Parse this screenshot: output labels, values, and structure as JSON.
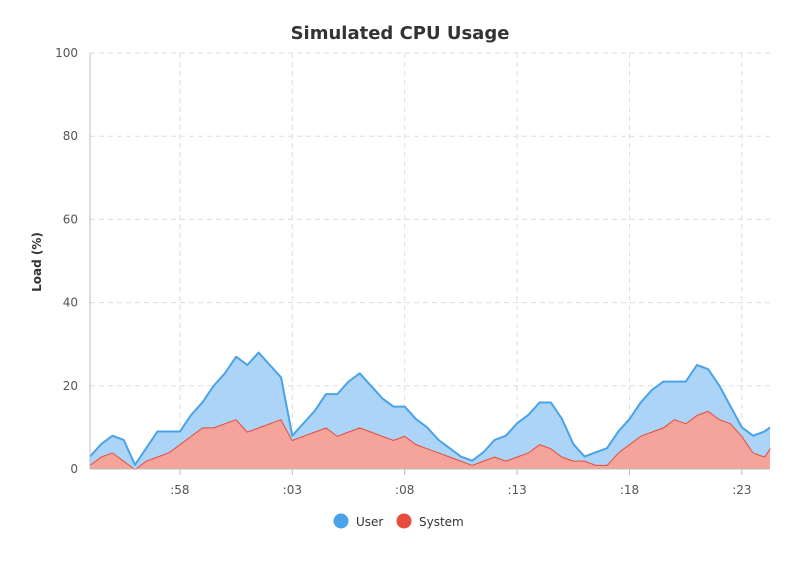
{
  "chart_data": {
    "type": "area",
    "title": "Simulated CPU Usage",
    "ylabel": "Load (%)",
    "xlabel": "",
    "ylim": [
      0,
      100
    ],
    "xlim": [
      0,
      60.5
    ],
    "yticks": [
      0,
      20,
      40,
      60,
      80,
      100
    ],
    "xticks": [
      {
        "x": 8,
        "label": ":58"
      },
      {
        "x": 18,
        "label": ":03"
      },
      {
        "x": 28,
        "label": ":08"
      },
      {
        "x": 38,
        "label": ":13"
      },
      {
        "x": 48,
        "label": ":18"
      },
      {
        "x": 58,
        "label": ":23"
      }
    ],
    "grid": true,
    "legend_position": "bottom",
    "stacked": true,
    "x": [
      0,
      1,
      2,
      3,
      4,
      5,
      6,
      7,
      8,
      9,
      10,
      11,
      12,
      13,
      14,
      15,
      16,
      17,
      18,
      19,
      20,
      21,
      22,
      23,
      24,
      25,
      26,
      27,
      28,
      29,
      30,
      31,
      32,
      33,
      34,
      35,
      36,
      37,
      38,
      39,
      40,
      41,
      42,
      43,
      44,
      45,
      46,
      47,
      48,
      49,
      50,
      51,
      52,
      53,
      54,
      55,
      56,
      57,
      58,
      59,
      60,
      60.5
    ],
    "series": [
      {
        "name": "System",
        "color": "#e74c3c",
        "fill": "#f5a49c",
        "values": [
          1,
          3,
          4,
          2,
          0,
          2,
          3,
          4,
          6,
          8,
          10,
          10,
          11,
          12,
          9,
          10,
          11,
          12,
          7,
          8,
          9,
          10,
          8,
          9,
          10,
          9,
          8,
          7,
          8,
          6,
          5,
          4,
          3,
          2,
          1,
          2,
          3,
          2,
          3,
          4,
          6,
          5,
          3,
          2,
          2,
          1,
          1,
          4,
          6,
          8,
          9,
          10,
          12,
          11,
          13,
          14,
          12,
          11,
          8,
          4,
          3,
          5
        ]
      },
      {
        "name": "User",
        "color": "#4aa3e8",
        "fill": "#acd4f6",
        "values": [
          2,
          3,
          4,
          5,
          1,
          3,
          6,
          5,
          3,
          5,
          6,
          10,
          12,
          15,
          16,
          18,
          14,
          10,
          1,
          3,
          5,
          8,
          10,
          12,
          13,
          11,
          9,
          8,
          7,
          6,
          5,
          3,
          2,
          1,
          1,
          2,
          4,
          6,
          8,
          9,
          10,
          11,
          9,
          4,
          1,
          3,
          4,
          5,
          6,
          8,
          10,
          11,
          9,
          10,
          12,
          10,
          8,
          4,
          2,
          4,
          6,
          5
        ]
      }
    ]
  }
}
